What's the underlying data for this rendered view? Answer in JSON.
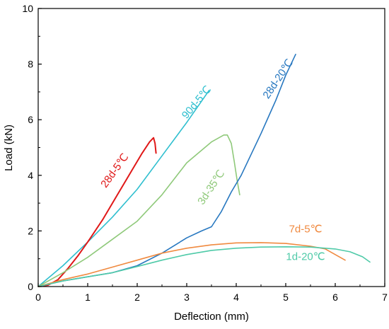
{
  "chart_data": {
    "type": "line",
    "xlabel": "Deflection (mm)",
    "ylabel": "Load (kN)",
    "xlim": [
      0,
      7
    ],
    "ylim": [
      0,
      10
    ],
    "xticks": [
      0,
      1,
      2,
      3,
      4,
      5,
      6,
      7
    ],
    "yticks": [
      0,
      2,
      4,
      6,
      8,
      10
    ],
    "grid": false,
    "legend": "none",
    "series": [
      {
        "name": "90d-5℃",
        "color": "#2FBFCF",
        "x": [
          0,
          0.5,
          1.0,
          1.5,
          2.0,
          2.5,
          3.0,
          3.45
        ],
        "y": [
          0,
          0.75,
          1.6,
          2.5,
          3.5,
          4.7,
          5.9,
          7.05
        ]
      },
      {
        "name": "28d-5℃",
        "color": "#E01818",
        "x": [
          0,
          0.2,
          0.4,
          0.6,
          0.8,
          1.0,
          1.3,
          1.6,
          1.9,
          2.1,
          2.25,
          2.33,
          2.36,
          2.38
        ],
        "y": [
          0,
          0.05,
          0.25,
          0.65,
          1.1,
          1.6,
          2.4,
          3.3,
          4.2,
          4.8,
          5.2,
          5.35,
          5.15,
          4.8
        ]
      },
      {
        "name": "3d-35℃",
        "color": "#8FC97A",
        "x": [
          0,
          0.5,
          1.0,
          1.5,
          2.0,
          2.5,
          3.0,
          3.5,
          3.75,
          3.82,
          3.9,
          3.96,
          4.02,
          4.07
        ],
        "y": [
          0,
          0.5,
          1.05,
          1.7,
          2.35,
          3.3,
          4.45,
          5.2,
          5.45,
          5.45,
          5.15,
          4.5,
          3.8,
          3.3
        ]
      },
      {
        "name": "28d-20℃",
        "color": "#2878C0",
        "x": [
          0,
          0.5,
          1.0,
          1.5,
          2.0,
          2.5,
          3.0,
          3.3,
          3.5,
          3.7,
          3.9,
          4.1,
          4.5,
          4.8,
          5.0,
          5.2
        ],
        "y": [
          0,
          0.2,
          0.35,
          0.5,
          0.75,
          1.2,
          1.75,
          2.0,
          2.15,
          2.7,
          3.4,
          4.0,
          5.5,
          6.7,
          7.6,
          8.35
        ]
      },
      {
        "name": "7d-5℃",
        "color": "#F08A40",
        "x": [
          0,
          0.5,
          1.0,
          1.5,
          2.0,
          2.5,
          3.0,
          3.5,
          4.0,
          4.5,
          5.0,
          5.5,
          5.8,
          6.0,
          6.2
        ],
        "y": [
          0,
          0.25,
          0.45,
          0.7,
          0.95,
          1.2,
          1.38,
          1.5,
          1.57,
          1.58,
          1.55,
          1.45,
          1.35,
          1.15,
          0.95
        ]
      },
      {
        "name": "1d-20℃",
        "color": "#4FCAA8",
        "x": [
          0,
          0.5,
          1.0,
          1.5,
          2.0,
          2.5,
          3.0,
          3.5,
          4.0,
          4.5,
          5.0,
          5.5,
          6.0,
          6.3,
          6.55,
          6.7
        ],
        "y": [
          0,
          0.2,
          0.35,
          0.5,
          0.72,
          0.95,
          1.15,
          1.3,
          1.38,
          1.42,
          1.43,
          1.42,
          1.35,
          1.25,
          1.07,
          0.88
        ]
      }
    ]
  }
}
